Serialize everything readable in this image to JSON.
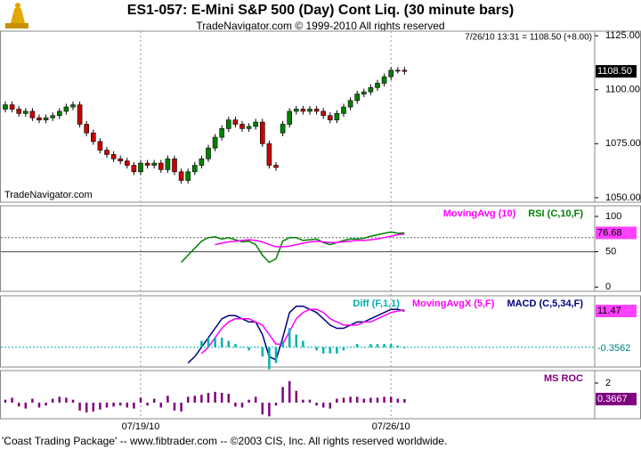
{
  "chart_data": [
    {
      "type": "candlestick",
      "title": "ES1-057:  E-Mini S&P 500 (Day) Cont Liq.  (30 minute bars)",
      "subtitle": "TradeNavigator.com © 1999-2010 All rights reserved",
      "info": "7/26/10 13:31 = 1108.50 (+8.00)",
      "watermark": "TradeNavigator.com",
      "footer": "'Coast Trading Package' -- www.fibtrader.com -- ©2003 CIS, Inc. All rights reserved worldwide.",
      "categories": [
        null,
        null,
        null,
        null,
        null,
        null,
        null,
        null,
        null,
        null,
        null,
        null,
        null,
        null,
        null,
        null,
        null,
        null,
        null,
        null,
        "07/19/10",
        null,
        null,
        null,
        null,
        null,
        null,
        null,
        null,
        null,
        null,
        null,
        null,
        null,
        null,
        null,
        null,
        null,
        null,
        null,
        null,
        null,
        null,
        null,
        null,
        null,
        null,
        null,
        null,
        null,
        null,
        null,
        null,
        null,
        null,
        null,
        null,
        "07/26/10",
        null,
        null
      ],
      "open": [
        1091,
        1093,
        1091,
        1089,
        1090,
        1087,
        1086,
        1087,
        1088,
        1090,
        1092,
        1093,
        1084,
        1080,
        1076,
        1072,
        1070,
        1068,
        1067,
        1065,
        1062,
        1066,
        1065,
        1066,
        1063,
        1068,
        1062,
        1058,
        1062,
        1065,
        1068,
        1073,
        1078,
        1082,
        1086,
        1084,
        1082,
        1083,
        1085,
        1075,
        1065,
        1080,
        1084,
        1090,
        1091,
        1090,
        1091,
        1090,
        1088,
        1086,
        1089,
        1092,
        1095,
        1098,
        1099,
        1101,
        1103,
        1106,
        1109,
        1109
      ],
      "high": [
        1094.5,
        1094.5,
        1092.5,
        1091.5,
        1091.5,
        1088.5,
        1088.5,
        1089.5,
        1091.5,
        1093.5,
        1094.5,
        1094.5,
        1085.5,
        1081.5,
        1077.5,
        1073.5,
        1071.5,
        1069.5,
        1068.5,
        1066.5,
        1067.5,
        1067.5,
        1067.5,
        1067.5,
        1069.5,
        1069.5,
        1063.5,
        1063.5,
        1066.5,
        1069.5,
        1074.5,
        1079.5,
        1083.5,
        1087.5,
        1087.5,
        1085.5,
        1084.5,
        1086.5,
        1086.5,
        1076.5,
        1066.5,
        1085.5,
        1091.5,
        1092.5,
        1092.5,
        1092.5,
        1092.5,
        1091.5,
        1089.5,
        1090.5,
        1093.5,
        1096.5,
        1099.5,
        1100.5,
        1102.5,
        1104.5,
        1107.5,
        1110.5,
        1110.5,
        1110.5
      ],
      "low": [
        1089.5,
        1089.5,
        1087.5,
        1087.5,
        1085.5,
        1084.5,
        1084.5,
        1085.5,
        1086.5,
        1088.5,
        1090.5,
        1082.5,
        1078.5,
        1074.5,
        1070.5,
        1068.5,
        1066.5,
        1065.5,
        1063.5,
        1060.5,
        1060.5,
        1063.5,
        1063.5,
        1061.5,
        1061.5,
        1060.5,
        1056.5,
        1056.5,
        1060.5,
        1063.5,
        1066.5,
        1071.5,
        1076.5,
        1080.5,
        1082.5,
        1080.5,
        1080.5,
        1081.5,
        1073.5,
        1063.5,
        1062.5,
        1078.5,
        1082.5,
        1088.5,
        1088.5,
        1088.5,
        1088.5,
        1086.5,
        1084.5,
        1084.5,
        1087.5,
        1090.5,
        1093.5,
        1096.5,
        1097.5,
        1099.5,
        1101.5,
        1104.5,
        1107.5,
        1107
      ],
      "close": [
        1093,
        1091,
        1089,
        1090,
        1087,
        1086,
        1087,
        1088,
        1090,
        1092,
        1093,
        1084,
        1080,
        1076,
        1072,
        1070,
        1068,
        1067,
        1065,
        1062,
        1066,
        1065,
        1066,
        1063,
        1068,
        1062,
        1058,
        1062,
        1065,
        1068,
        1073,
        1078,
        1082,
        1086,
        1084,
        1082,
        1083,
        1085,
        1075,
        1065,
        1064,
        1084,
        1090,
        1091,
        1090,
        1091,
        1090,
        1088,
        1086,
        1089,
        1092,
        1095,
        1098,
        1099,
        1101,
        1103,
        1106,
        1109,
        1109,
        1108.5
      ],
      "last_label": "1108.50",
      "up_color": "#008000",
      "down_color": "#cc0000",
      "ylim": [
        1047.9,
        1127.1
      ],
      "yticks": [
        {
          "value": 1050,
          "label": "1050.00"
        },
        {
          "value": 1075,
          "label": "1075.00"
        },
        {
          "value": 1100,
          "label": "1100.00"
        },
        {
          "value": 1125,
          "label": "1125.00"
        }
      ]
    },
    {
      "type": "line",
      "series": [
        {
          "name": "RSI (C,10,F)",
          "color": "#008000",
          "values": [
            null,
            null,
            null,
            null,
            null,
            null,
            null,
            null,
            null,
            null,
            null,
            null,
            null,
            null,
            null,
            null,
            null,
            null,
            null,
            null,
            null,
            null,
            null,
            null,
            null,
            null,
            35,
            45,
            55,
            65,
            70,
            71,
            68,
            70,
            67,
            64,
            65,
            60,
            45,
            35,
            40,
            65,
            70,
            70,
            66,
            67,
            68,
            63,
            60,
            63,
            66,
            68,
            68,
            69,
            72,
            74,
            76,
            78,
            76,
            76.68
          ]
        },
        {
          "name": "MovingAvg (10)",
          "color": "#ff00ff",
          "values": [
            null,
            null,
            null,
            null,
            null,
            null,
            null,
            null,
            null,
            null,
            null,
            null,
            null,
            null,
            null,
            null,
            null,
            null,
            null,
            null,
            null,
            null,
            null,
            null,
            null,
            null,
            null,
            null,
            null,
            null,
            null,
            60,
            62,
            64,
            65,
            66,
            67,
            66,
            64,
            60,
            57,
            57,
            58,
            60,
            62,
            64,
            65,
            64,
            63,
            63,
            64,
            65,
            66,
            66,
            67,
            68,
            70,
            72,
            74,
            75
          ]
        }
      ],
      "levels": [
        70,
        50
      ],
      "ylim": [
        -6,
        115
      ],
      "yticks": [
        0,
        50,
        100
      ]
    },
    {
      "type": "line",
      "series": [
        {
          "name": "MACD (C,5,34,F)",
          "color": "#000080",
          "values": [
            null,
            null,
            null,
            null,
            null,
            null,
            null,
            null,
            null,
            null,
            null,
            null,
            null,
            null,
            null,
            null,
            null,
            null,
            null,
            null,
            null,
            null,
            null,
            null,
            null,
            null,
            null,
            -5,
            -3,
            0,
            3,
            6,
            9,
            10,
            10,
            9,
            8,
            8,
            4,
            -3,
            -4,
            3,
            11,
            13,
            13,
            12,
            11,
            9,
            7,
            6,
            6,
            7,
            8,
            8,
            9,
            10,
            11,
            12,
            12,
            11.47
          ]
        },
        {
          "name": "MovingAvgX (5,F)",
          "color": "#ff00ff",
          "values": [
            null,
            null,
            null,
            null,
            null,
            null,
            null,
            null,
            null,
            null,
            null,
            null,
            null,
            null,
            null,
            null,
            null,
            null,
            null,
            null,
            null,
            null,
            null,
            null,
            null,
            null,
            null,
            null,
            null,
            -2,
            0,
            3,
            6,
            8,
            9,
            9,
            9,
            8,
            7,
            4,
            1,
            1,
            5,
            9,
            11,
            12,
            12,
            11,
            9,
            8,
            7,
            7,
            7,
            8,
            8,
            9,
            10,
            11,
            11.5,
            11.8262
          ]
        },
        {
          "name": "Diff (F,1,1)",
          "color": "#00b0b0",
          "kind": "bar",
          "values": [
            null,
            null,
            null,
            null,
            null,
            null,
            null,
            null,
            null,
            null,
            null,
            null,
            null,
            null,
            null,
            null,
            null,
            null,
            null,
            null,
            null,
            null,
            null,
            null,
            null,
            null,
            null,
            null,
            null,
            2,
            3,
            3,
            3,
            2,
            1,
            0,
            -1,
            0,
            -3,
            -7,
            -5,
            2,
            6,
            4,
            2,
            0,
            -1,
            -2,
            -2,
            -2,
            -1,
            0,
            1,
            0,
            1,
            1,
            1,
            1,
            0.5,
            -0.3562
          ]
        }
      ],
      "ylim": [
        -6.3,
        16.3
      ],
      "yticks": []
    },
    {
      "type": "bar",
      "series": [
        {
          "name": "MS ROC",
          "color": "#800080",
          "values": [
            0.3,
            0.5,
            -0.4,
            -0.6,
            0.4,
            -0.5,
            -0.3,
            0.4,
            0.6,
            0.5,
            0.3,
            -0.8,
            -1,
            -0.9,
            -0.7,
            -0.5,
            -0.4,
            -0.3,
            -0.5,
            -0.6,
            0.5,
            -0.3,
            0.4,
            -0.5,
            0.7,
            -0.8,
            -0.9,
            0.6,
            0.7,
            0.8,
            1,
            1.1,
            1,
            0.9,
            -0.4,
            -0.5,
            0.3,
            0.6,
            -1.2,
            -1.4,
            -0.3,
            1.6,
            2.2,
            1.2,
            0.3,
            0.3,
            -0.3,
            -0.5,
            -0.6,
            0.4,
            0.5,
            0.6,
            0.6,
            0.4,
            0.5,
            0.5,
            0.6,
            0.6,
            0.4,
            0.3667
          ]
        }
      ],
      "ylim": [
        -1.64,
        3.27
      ],
      "yticks": [
        2
      ]
    }
  ]
}
